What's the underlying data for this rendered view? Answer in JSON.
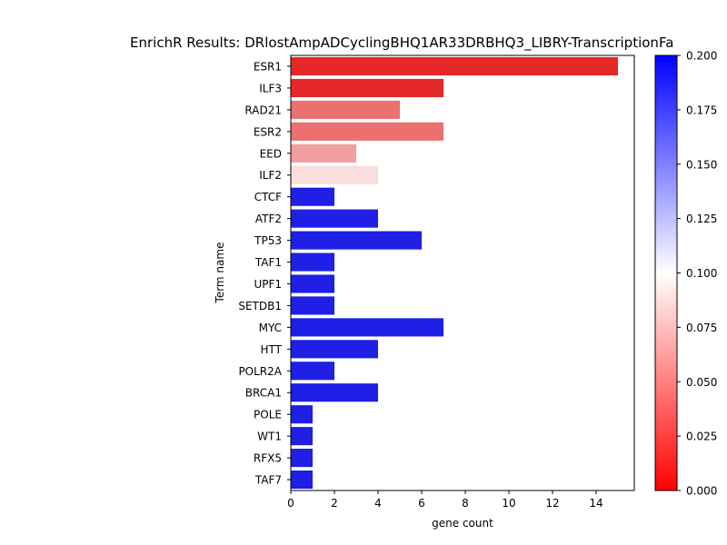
{
  "chart_data": {
    "type": "bar",
    "orientation": "horizontal",
    "title": "EnrichR Results: DRlostAmpADCyclingBHQ1AR33DRBHQ3_LIBRY-TranscriptionFa",
    "xlabel": "gene count",
    "ylabel": "Term name",
    "xlim": [
      0,
      15.75
    ],
    "xticks": [
      0,
      2,
      4,
      6,
      8,
      10,
      12,
      14
    ],
    "categories": [
      "ESR1",
      "ILF3",
      "RAD21",
      "ESR2",
      "EED",
      "ILF2",
      "CTCF",
      "ATF2",
      "TP53",
      "TAF1",
      "UPF1",
      "SETDB1",
      "MYC",
      "HTT",
      "POLR2A",
      "BRCA1",
      "POLE",
      "WT1",
      "RFX5",
      "TAF7"
    ],
    "values": [
      15,
      7,
      5,
      7,
      3,
      4,
      2,
      4,
      6,
      2,
      2,
      2,
      7,
      4,
      2,
      4,
      1,
      1,
      1,
      1
    ],
    "bar_colors": [
      "#e52727",
      "#e52727",
      "#ec7070",
      "#ec7070",
      "#f29e9e",
      "#f9dede",
      "#1f1fe5",
      "#1f1fe5",
      "#1f1fe5",
      "#1f1fe5",
      "#1f1fe5",
      "#1f1fe5",
      "#1f1fe5",
      "#1f1fe5",
      "#1f1fe5",
      "#1f1fe5",
      "#1f1fe5",
      "#1f1fe5",
      "#1f1fe5",
      "#1f1fe5"
    ],
    "colorbar": {
      "cmap": "bwr_r",
      "range": [
        0.0,
        0.2
      ],
      "ticks": [
        "0.000",
        "0.025",
        "0.050",
        "0.075",
        "0.100",
        "0.125",
        "0.150",
        "0.175",
        "0.200"
      ],
      "colors": {
        "low": "#ff0000",
        "mid": "#ffffff",
        "high": "#0000ff"
      }
    },
    "grid": false,
    "legend": "none"
  }
}
